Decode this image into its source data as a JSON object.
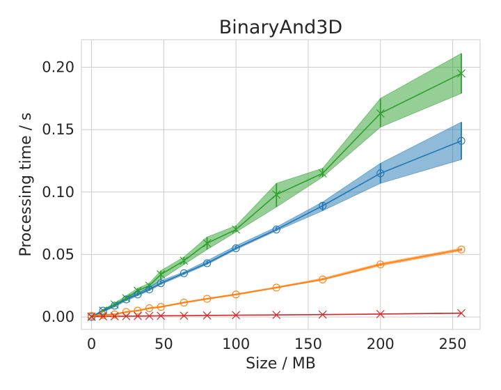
{
  "chart_data": {
    "type": "line",
    "title": "BinaryAnd3D",
    "xlabel": "Size / MB",
    "ylabel": "Processing time / s",
    "xlim": [
      -7,
      269
    ],
    "ylim": [
      -0.01,
      0.222
    ],
    "xticks": [
      0,
      50,
      100,
      150,
      200,
      250
    ],
    "yticks": [
      0.0,
      0.05,
      0.1,
      0.15,
      0.2
    ],
    "xtick_labels": [
      "0",
      "50",
      "100",
      "150",
      "200",
      "250"
    ],
    "ytick_labels": [
      "0.00",
      "0.05",
      "0.10",
      "0.15",
      "0.20"
    ],
    "grid": true,
    "legend": "none",
    "series": [
      {
        "color": "#2ca02c",
        "marker": "x",
        "points": [
          {
            "x": 0,
            "y": 0.0,
            "lo": 0.0,
            "hi": 0.0
          },
          {
            "x": 8,
            "y": 0.005,
            "lo": 0.004,
            "hi": 0.006
          },
          {
            "x": 16,
            "y": 0.01,
            "lo": 0.009,
            "hi": 0.011
          },
          {
            "x": 24,
            "y": 0.015,
            "lo": 0.014,
            "hi": 0.017
          },
          {
            "x": 32,
            "y": 0.021,
            "lo": 0.019,
            "hi": 0.023
          },
          {
            "x": 40,
            "y": 0.025,
            "lo": 0.023,
            "hi": 0.027
          },
          {
            "x": 48,
            "y": 0.034,
            "lo": 0.03,
            "hi": 0.037
          },
          {
            "x": 64,
            "y": 0.045,
            "lo": 0.042,
            "hi": 0.048
          },
          {
            "x": 80,
            "y": 0.059,
            "lo": 0.054,
            "hi": 0.064
          },
          {
            "x": 100,
            "y": 0.07,
            "lo": 0.068,
            "hi": 0.073
          },
          {
            "x": 128,
            "y": 0.098,
            "lo": 0.088,
            "hi": 0.107
          },
          {
            "x": 160,
            "y": 0.115,
            "lo": 0.112,
            "hi": 0.119
          },
          {
            "x": 200,
            "y": 0.163,
            "lo": 0.152,
            "hi": 0.175
          },
          {
            "x": 256,
            "y": 0.195,
            "lo": 0.179,
            "hi": 0.211
          }
        ]
      },
      {
        "color": "#1f77b4",
        "marker": "o",
        "points": [
          {
            "x": 0,
            "y": 0.0,
            "lo": 0.0,
            "hi": 0.0
          },
          {
            "x": 8,
            "y": 0.005,
            "lo": 0.004,
            "hi": 0.006
          },
          {
            "x": 16,
            "y": 0.009,
            "lo": 0.008,
            "hi": 0.01
          },
          {
            "x": 24,
            "y": 0.014,
            "lo": 0.013,
            "hi": 0.015
          },
          {
            "x": 32,
            "y": 0.018,
            "lo": 0.017,
            "hi": 0.019
          },
          {
            "x": 40,
            "y": 0.022,
            "lo": 0.021,
            "hi": 0.024
          },
          {
            "x": 48,
            "y": 0.027,
            "lo": 0.026,
            "hi": 0.029
          },
          {
            "x": 64,
            "y": 0.035,
            "lo": 0.034,
            "hi": 0.036
          },
          {
            "x": 80,
            "y": 0.043,
            "lo": 0.042,
            "hi": 0.045
          },
          {
            "x": 100,
            "y": 0.055,
            "lo": 0.054,
            "hi": 0.057
          },
          {
            "x": 128,
            "y": 0.07,
            "lo": 0.069,
            "hi": 0.072
          },
          {
            "x": 160,
            "y": 0.089,
            "lo": 0.085,
            "hi": 0.092
          },
          {
            "x": 200,
            "y": 0.115,
            "lo": 0.107,
            "hi": 0.123
          },
          {
            "x": 256,
            "y": 0.141,
            "lo": 0.126,
            "hi": 0.156
          }
        ]
      },
      {
        "color": "#ff7f0e",
        "marker": "o",
        "points": [
          {
            "x": 0,
            "y": 0.001,
            "lo": 0.0005,
            "hi": 0.0015
          },
          {
            "x": 8,
            "y": 0.0015,
            "lo": 0.001,
            "hi": 0.002
          },
          {
            "x": 16,
            "y": 0.002,
            "lo": 0.0015,
            "hi": 0.0025
          },
          {
            "x": 24,
            "y": 0.004,
            "lo": 0.0035,
            "hi": 0.0045
          },
          {
            "x": 32,
            "y": 0.005,
            "lo": 0.0045,
            "hi": 0.0055
          },
          {
            "x": 40,
            "y": 0.007,
            "lo": 0.0065,
            "hi": 0.0075
          },
          {
            "x": 48,
            "y": 0.008,
            "lo": 0.0075,
            "hi": 0.0085
          },
          {
            "x": 64,
            "y": 0.0115,
            "lo": 0.011,
            "hi": 0.012
          },
          {
            "x": 80,
            "y": 0.0145,
            "lo": 0.014,
            "hi": 0.015
          },
          {
            "x": 100,
            "y": 0.018,
            "lo": 0.0175,
            "hi": 0.0185
          },
          {
            "x": 128,
            "y": 0.0235,
            "lo": 0.023,
            "hi": 0.024
          },
          {
            "x": 160,
            "y": 0.03,
            "lo": 0.0295,
            "hi": 0.031
          },
          {
            "x": 200,
            "y": 0.042,
            "lo": 0.041,
            "hi": 0.043
          },
          {
            "x": 256,
            "y": 0.054,
            "lo": 0.053,
            "hi": 0.055
          }
        ]
      },
      {
        "color": "#d62728",
        "marker": "x",
        "points": [
          {
            "x": 0,
            "y": 0.0003,
            "lo": 0.0002,
            "hi": 0.0004
          },
          {
            "x": 8,
            "y": 0.0004,
            "lo": 0.0003,
            "hi": 0.0005
          },
          {
            "x": 16,
            "y": 0.0005,
            "lo": 0.0004,
            "hi": 0.0006
          },
          {
            "x": 24,
            "y": 0.0006,
            "lo": 0.0005,
            "hi": 0.0007
          },
          {
            "x": 32,
            "y": 0.0007,
            "lo": 0.0006,
            "hi": 0.0008
          },
          {
            "x": 40,
            "y": 0.0008,
            "lo": 0.0007,
            "hi": 0.0009
          },
          {
            "x": 48,
            "y": 0.0009,
            "lo": 0.0008,
            "hi": 0.001
          },
          {
            "x": 64,
            "y": 0.001,
            "lo": 0.0009,
            "hi": 0.0011
          },
          {
            "x": 80,
            "y": 0.0012,
            "lo": 0.0011,
            "hi": 0.0013
          },
          {
            "x": 100,
            "y": 0.0014,
            "lo": 0.0013,
            "hi": 0.0015
          },
          {
            "x": 128,
            "y": 0.0016,
            "lo": 0.0015,
            "hi": 0.0017
          },
          {
            "x": 160,
            "y": 0.0019,
            "lo": 0.0018,
            "hi": 0.002
          },
          {
            "x": 200,
            "y": 0.0023,
            "lo": 0.0022,
            "hi": 0.0024
          },
          {
            "x": 256,
            "y": 0.003,
            "lo": 0.0028,
            "hi": 0.0032
          }
        ]
      }
    ]
  }
}
